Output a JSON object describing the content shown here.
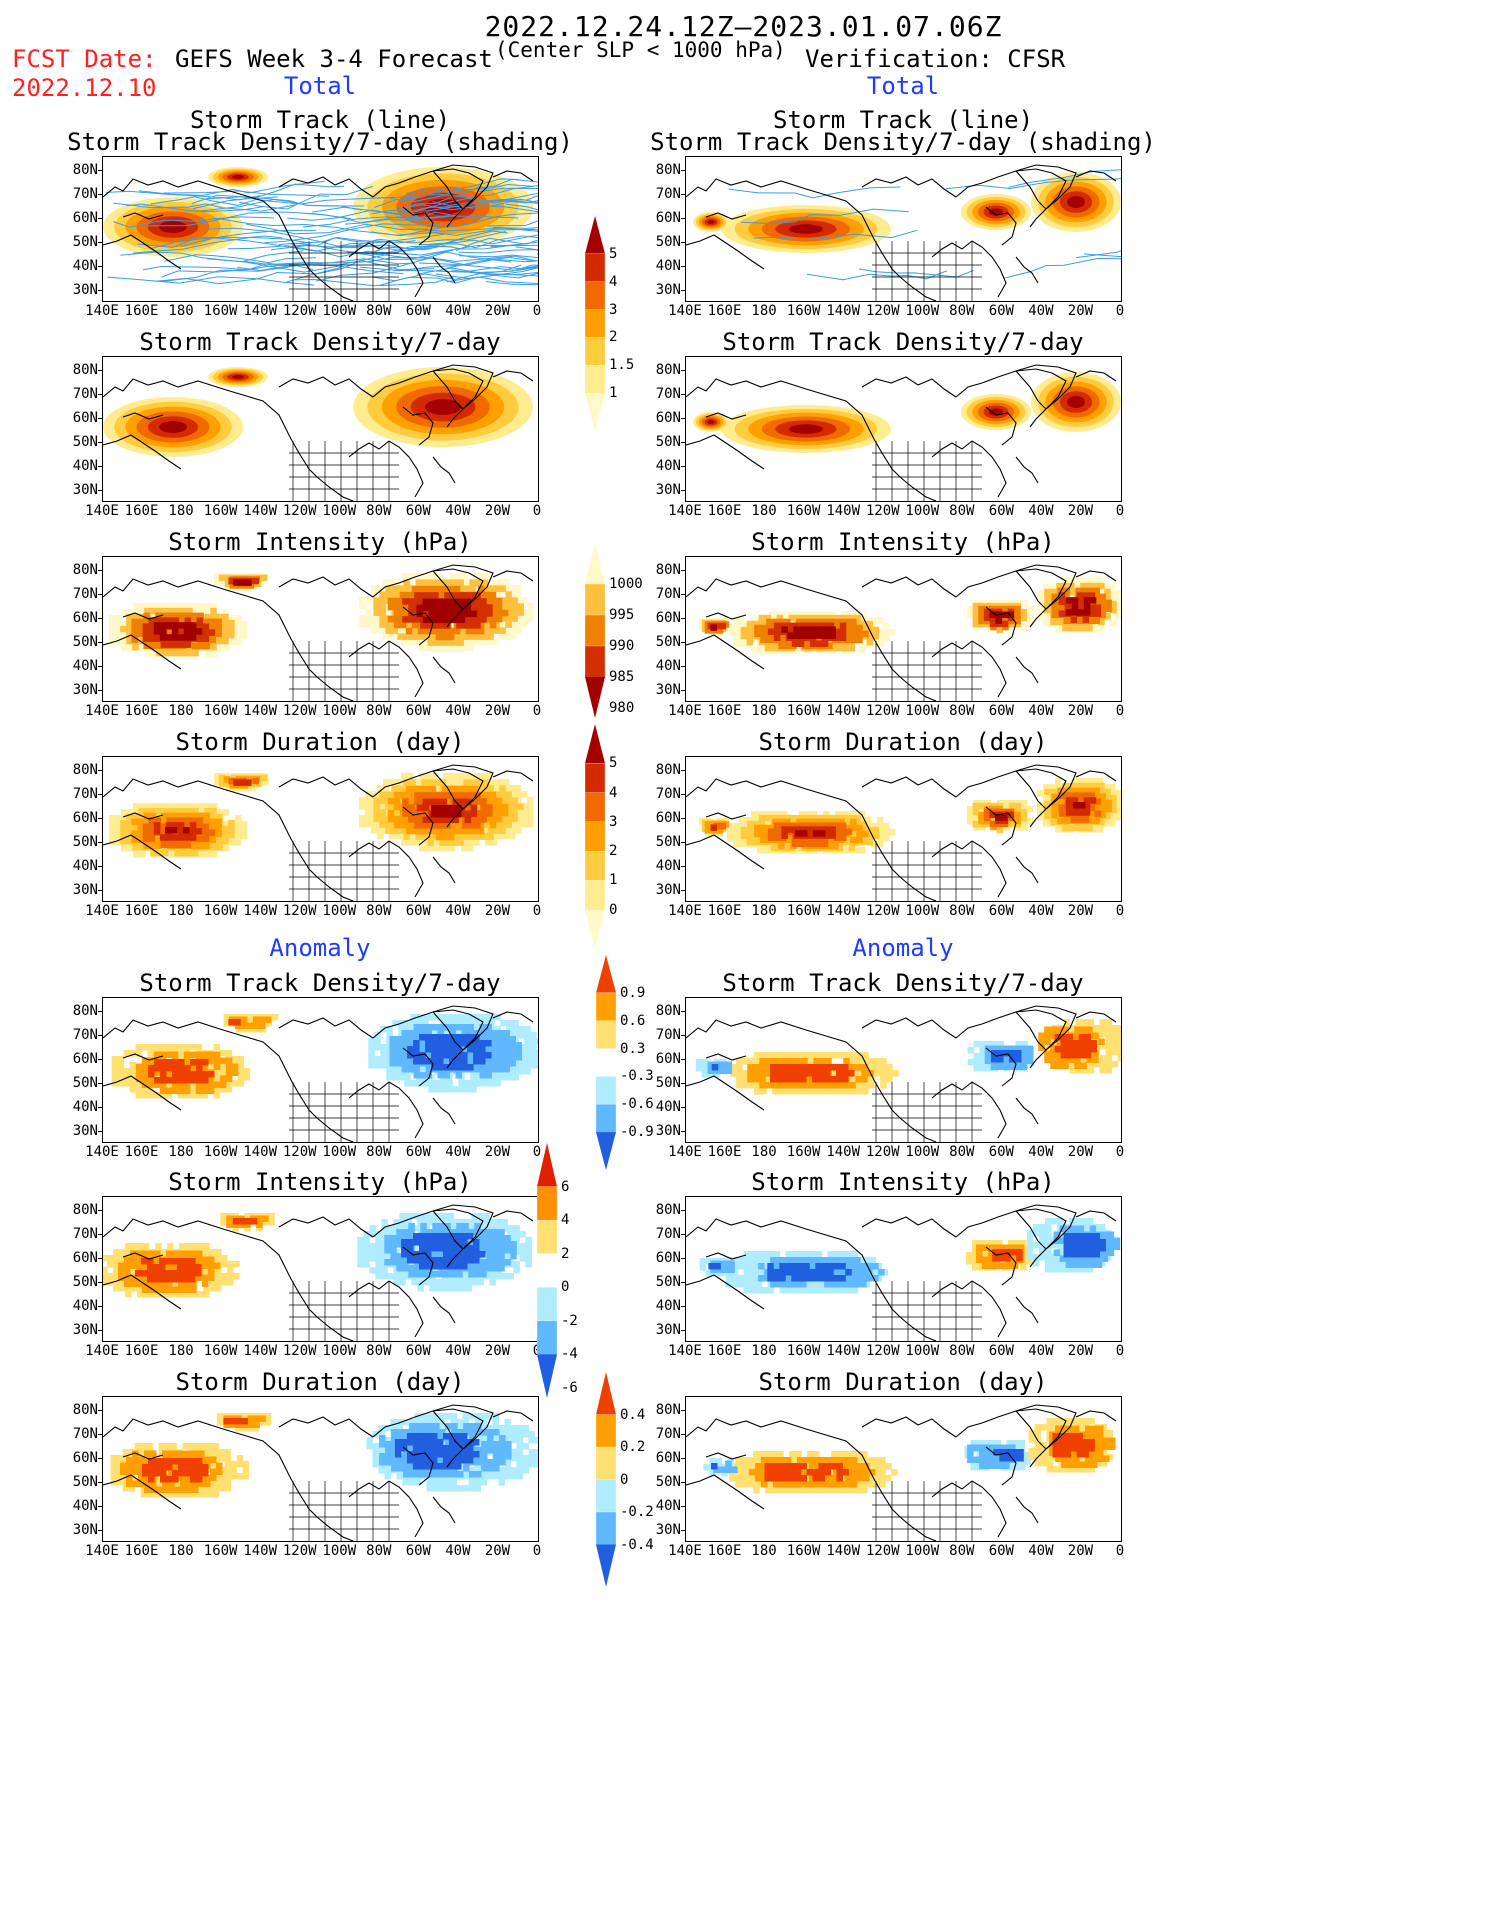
{
  "header": {
    "date_range": "2022.12.24.12Z–2023.01.07.06Z",
    "fcst_label": "FCST Date:",
    "fcst_date": "2022.12.10",
    "left_title": "GEFS Week 3-4 Forecast",
    "center_sub": "(Center SLP < 1000 hPa)",
    "right_title": "Verification: CFSR",
    "total_label": "Total",
    "anomaly_label": "Anomaly"
  },
  "axes": {
    "lat_labels": [
      "80N",
      "70N",
      "60N",
      "50N",
      "40N",
      "30N"
    ],
    "lon_labels": [
      "140E",
      "160E",
      "180",
      "160W",
      "140W",
      "120W",
      "100W",
      "80W",
      "60W",
      "40W",
      "20W",
      "0"
    ]
  },
  "panels": {
    "total": [
      {
        "title1": "Storm Track (line)",
        "title2": "Storm Track Density/7-day (shading)"
      },
      {
        "title1": "Storm Track Density/7-day",
        "title2": ""
      },
      {
        "title1": "Storm Intensity (hPa)",
        "title2": ""
      },
      {
        "title1": "Storm Duration (day)",
        "title2": ""
      }
    ],
    "anomaly": [
      {
        "title1": "Storm Track Density/7-day"
      },
      {
        "title1": "Storm Intensity (hPa)"
      },
      {
        "title1": "Storm Duration (day)"
      }
    ]
  },
  "colorbars": {
    "density": {
      "labels": [
        "5",
        "4",
        "3",
        "2",
        "1.5",
        "1"
      ],
      "colors": [
        "#a50000",
        "#d42a00",
        "#f06a00",
        "#ffa000",
        "#ffcc40",
        "#ffec90",
        "#fff8c8"
      ]
    },
    "intensity": {
      "labels": [
        "1000",
        "995",
        "990",
        "985",
        "980"
      ],
      "colors": [
        "#fff8c8",
        "#ffc040",
        "#f08000",
        "#d23000",
        "#a00000"
      ]
    },
    "duration": {
      "labels": [
        "5",
        "4",
        "3",
        "2",
        "1",
        "0"
      ],
      "colors": [
        "#a50000",
        "#d42a00",
        "#f06a00",
        "#ffa000",
        "#ffcc40",
        "#ffec90",
        "#fff8c8"
      ]
    },
    "density_anom": {
      "labels": [
        "0.9",
        "0.6",
        "0.3",
        "-0.3",
        "-0.6",
        "-0.9"
      ],
      "colors": [
        "#f04000",
        "#ffa000",
        "#ffe070",
        "#ffffff",
        "#b0ecff",
        "#60b8ff",
        "#2060e0"
      ]
    },
    "intensity_anom": {
      "labels": [
        "6",
        "4",
        "2",
        "0",
        "-2",
        "-4",
        "-6"
      ],
      "colors": [
        "#e02000",
        "#ff9000",
        "#ffe070",
        "#ffffff",
        "#b0ecff",
        "#60b8ff",
        "#2060e0"
      ]
    },
    "duration_anom": {
      "labels": [
        "0.4",
        "0.2",
        "0",
        "-0.2",
        "-0.4"
      ],
      "colors": [
        "#f04000",
        "#ffa000",
        "#ffe070",
        "#b0ecff",
        "#60b8ff",
        "#2060e0"
      ]
    }
  },
  "colors": {
    "fcst_red": "#ff2020",
    "label_blue": "#1e3cff",
    "track_line": "#3a9ee8"
  }
}
